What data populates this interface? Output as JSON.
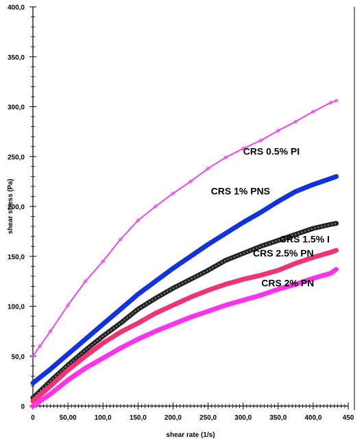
{
  "chart_data": {
    "type": "line",
    "title": "",
    "xlabel": "shear rate (1/s)",
    "ylabel": "shear stress (Pa)",
    "xlim": [
      0,
      450
    ],
    "ylim": [
      0,
      400
    ],
    "x_ticks": [
      0,
      50,
      100,
      150,
      200,
      250,
      300,
      350,
      400,
      450
    ],
    "x_tick_labels": [
      "0",
      "50,00",
      "100,0",
      "150,0",
      "200,0",
      "250,0",
      "300,0",
      "350,0",
      "400,0",
      "450"
    ],
    "y_ticks": [
      0,
      50,
      100,
      150,
      200,
      250,
      300,
      350,
      400
    ],
    "y_tick_labels": [
      "0",
      "50,0",
      "100,0",
      "150,0",
      "200,0",
      "250,0",
      "300,0",
      "350,0",
      "400,0"
    ],
    "grid": false,
    "legend": "none",
    "series": [
      {
        "name": "CRS 0.5% PNS",
        "color": "#ee44ee",
        "x": [
          0,
          10,
          25,
          50,
          75,
          100,
          125,
          150,
          175,
          200,
          225,
          250,
          275,
          300,
          325,
          350,
          375,
          400,
          425,
          433
        ],
        "y": [
          50,
          60,
          75,
          101,
          125,
          145,
          167,
          186,
          200,
          213,
          225,
          238,
          249,
          258,
          266,
          276,
          285,
          295,
          304,
          306
        ]
      },
      {
        "name": "CRS 1% PNS",
        "color": "#1133dd",
        "x": [
          0,
          25,
          50,
          75,
          100,
          125,
          150,
          175,
          200,
          225,
          250,
          275,
          300,
          325,
          350,
          375,
          400,
          425,
          433
        ],
        "y": [
          23,
          37,
          52,
          67,
          82,
          97,
          112,
          125,
          138,
          150,
          162,
          173,
          184,
          194,
          205,
          215,
          222,
          228,
          230
        ]
      },
      {
        "name": "CRS 1.5% PNS",
        "color": "#222222",
        "x": [
          0,
          25,
          50,
          75,
          100,
          125,
          150,
          175,
          200,
          225,
          250,
          275,
          300,
          325,
          350,
          375,
          400,
          425,
          433
        ],
        "y": [
          8,
          25,
          41,
          56,
          70,
          83,
          97,
          108,
          118,
          127,
          136,
          146,
          153,
          160,
          166,
          172,
          178,
          182,
          183
        ]
      },
      {
        "name": "CRS 2.5% PNS",
        "color": "#ee3377",
        "x": [
          0,
          25,
          50,
          75,
          100,
          125,
          150,
          175,
          200,
          225,
          250,
          275,
          300,
          325,
          350,
          375,
          400,
          425,
          433
        ],
        "y": [
          5,
          20,
          36,
          50,
          63,
          74,
          83,
          93,
          101,
          109,
          116,
          122,
          127,
          131,
          136,
          143,
          149,
          154,
          156
        ]
      },
      {
        "name": "CRS 2% PNS",
        "color": "#ff33ee",
        "x": [
          0,
          25,
          50,
          75,
          100,
          125,
          150,
          175,
          200,
          225,
          250,
          275,
          300,
          325,
          350,
          375,
          400,
          425,
          433
        ],
        "y": [
          0,
          12,
          26,
          38,
          48,
          58,
          67,
          75,
          82,
          89,
          95,
          101,
          106,
          111,
          117,
          122,
          128,
          133,
          137
        ]
      }
    ],
    "series_labels": [
      {
        "text": "CRS 0.5% PI",
        "x": 300,
        "y": 252
      },
      {
        "text": "CRS 1% PNS",
        "x": 254,
        "y": 212
      },
      {
        "text": "CRS 1.5% I",
        "x": 352,
        "y": 164
      },
      {
        "text": "CRS 2.5% PN",
        "x": 314,
        "y": 150
      },
      {
        "text": "CRS 2% PN",
        "x": 326,
        "y": 120
      }
    ]
  }
}
